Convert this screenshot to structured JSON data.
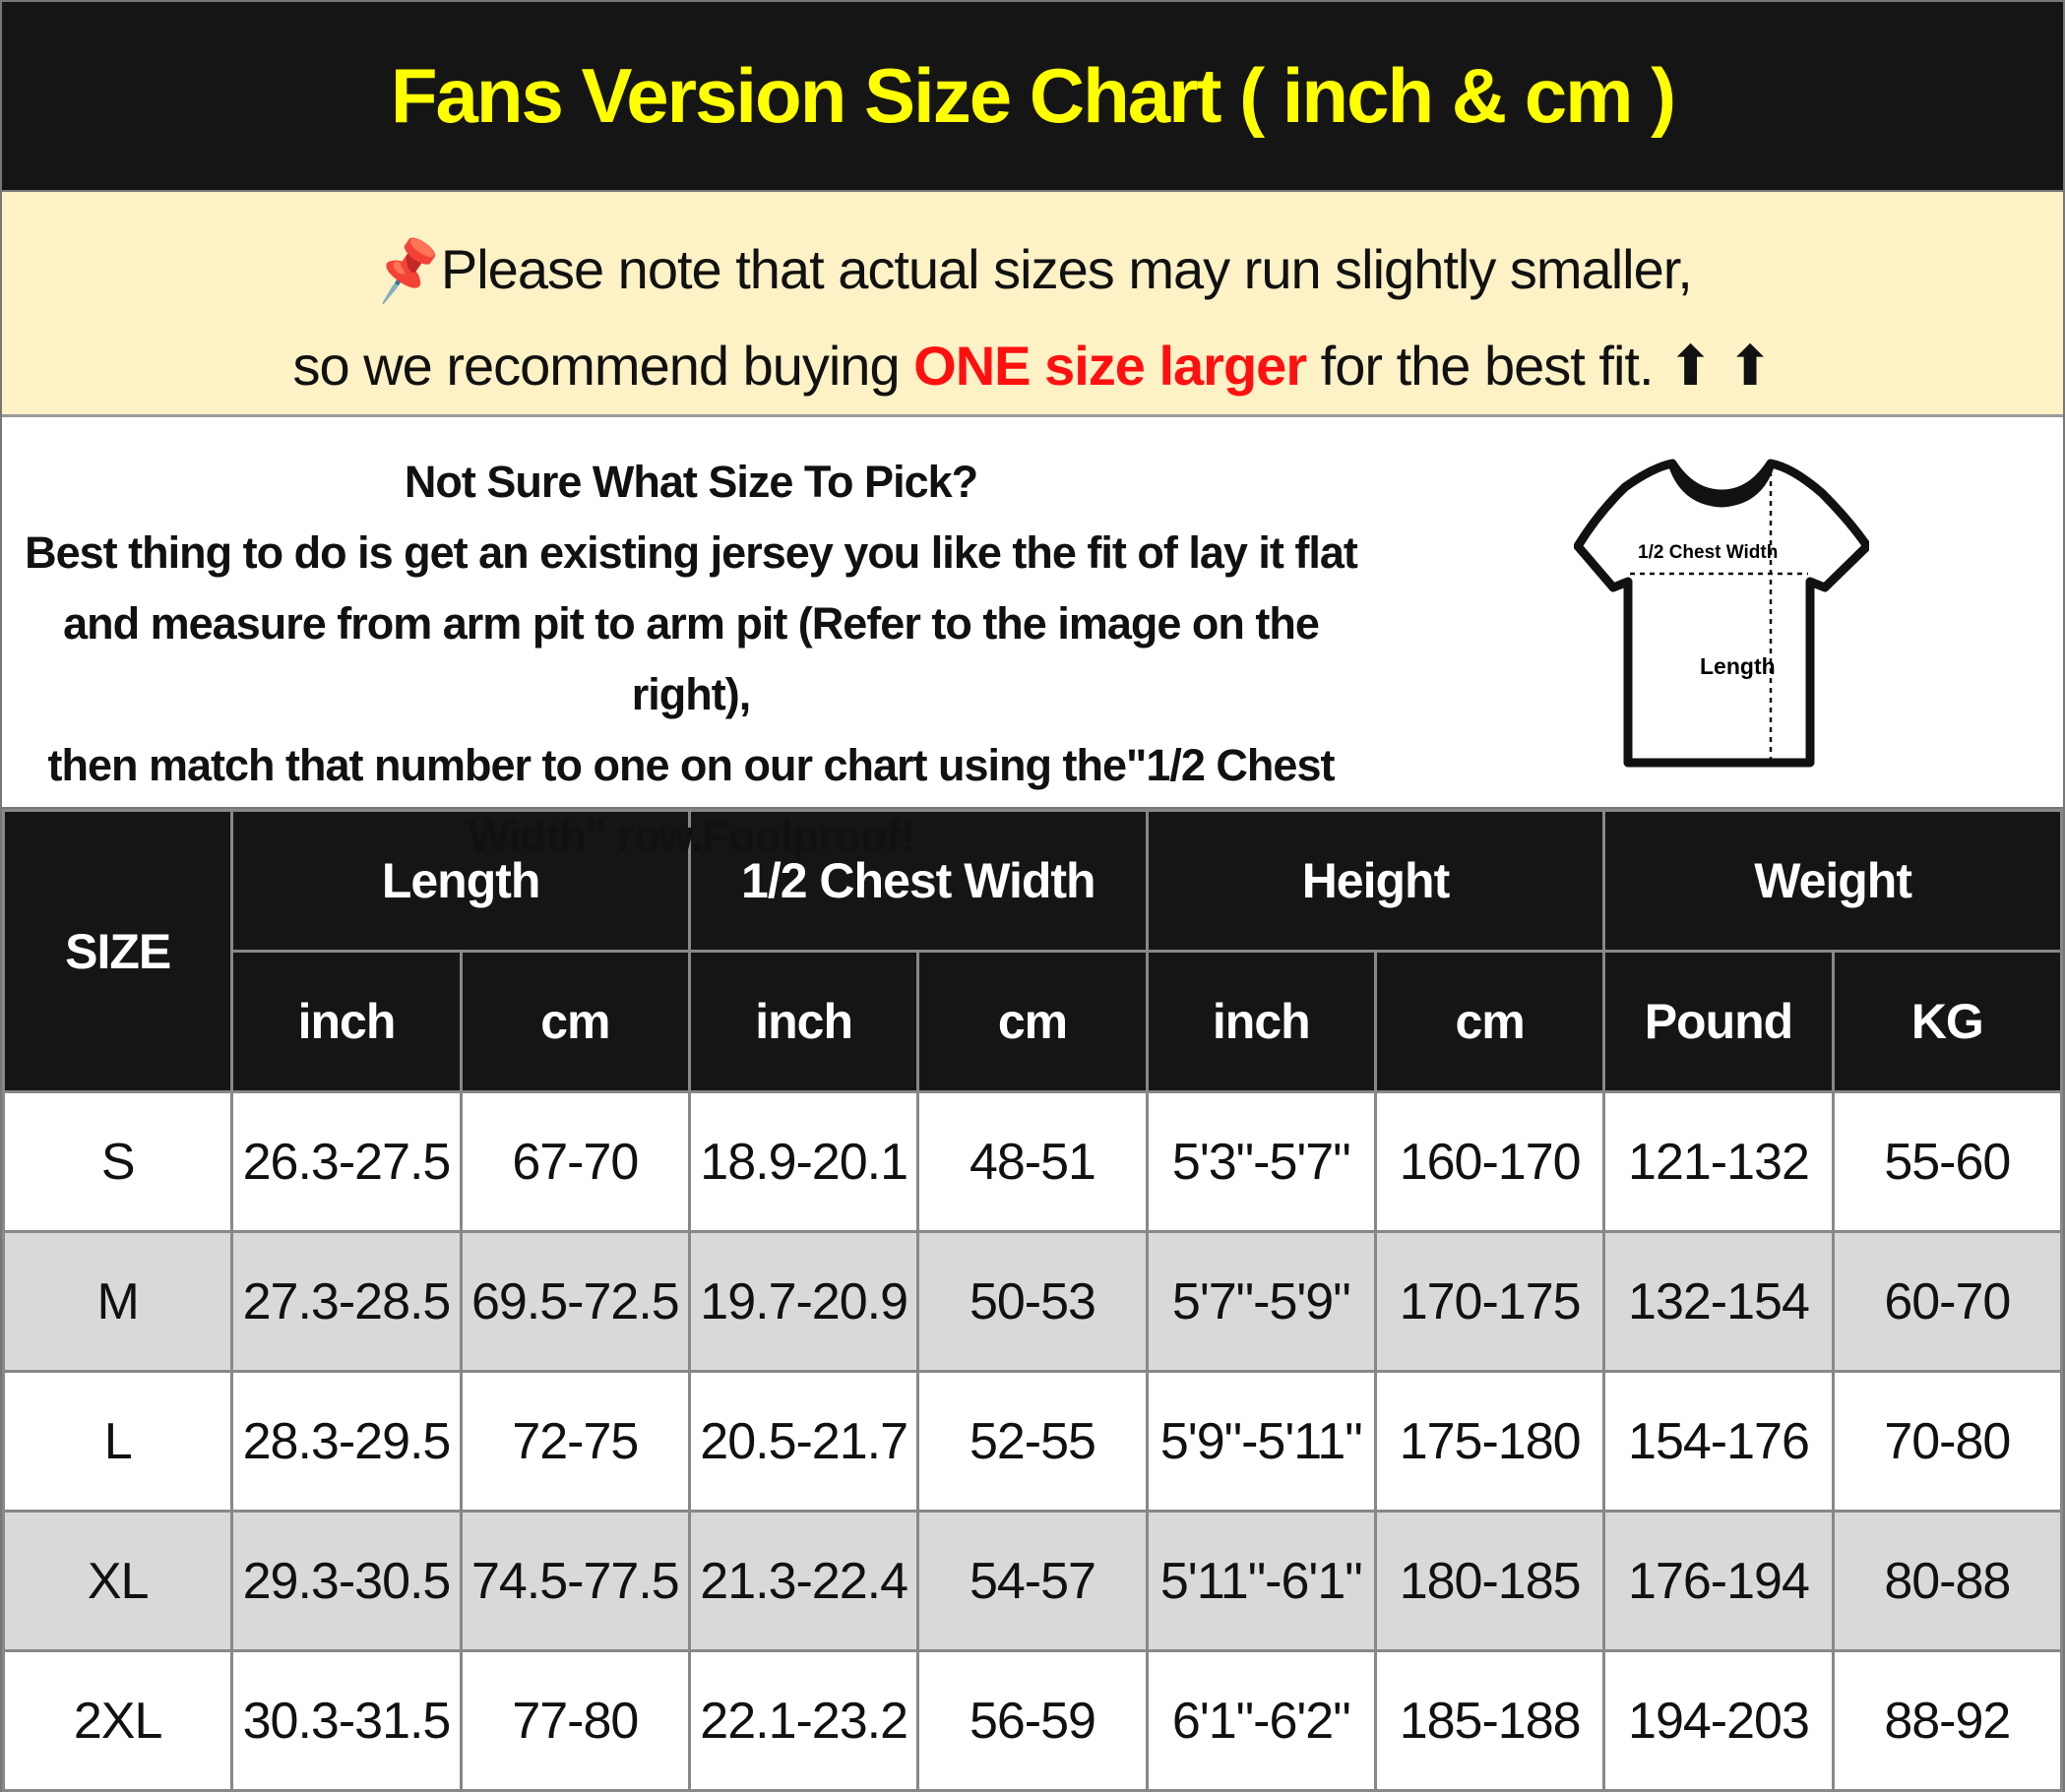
{
  "title": "Fans Version Size Chart ( inch & cm )",
  "note": {
    "pin_icon": "pushpin-icon",
    "line1": "Please note that actual sizes may run slightly smaller,",
    "line2_pre": "so we recommend buying ",
    "line2_red": "ONE size larger",
    "line2_post": " for the best fit. ",
    "arrows": "⬆ ⬆"
  },
  "info": {
    "heading": "Not Sure What Size To Pick?",
    "line1": "Best thing to do is get an existing jersey you like the fit of lay it flat",
    "line2": "and measure from arm pit to arm pit (Refer to the image on the right),",
    "line3": "then match that number to one on our chart using the\"1/2 Chest",
    "line4": "Width\" row.Foolproof!",
    "diagram_chest": "1/2 Chest Width",
    "diagram_length": "Length"
  },
  "table": {
    "size_header": "SIZE",
    "groups": [
      "Length",
      "1/2 Chest Width",
      "Height",
      "Weight"
    ],
    "units": [
      "inch",
      "cm",
      "inch",
      "cm",
      "inch",
      "cm",
      "Pound",
      "KG"
    ],
    "rows": [
      [
        "S",
        "26.3-27.5",
        "67-70",
        "18.9-20.1",
        "48-51",
        "5'3\"-5'7\"",
        "160-170",
        "121-132",
        "55-60"
      ],
      [
        "M",
        "27.3-28.5",
        "69.5-72.5",
        "19.7-20.9",
        "50-53",
        "5'7\"-5'9\"",
        "170-175",
        "132-154",
        "60-70"
      ],
      [
        "L",
        "28.3-29.5",
        "72-75",
        "20.5-21.7",
        "52-55",
        "5'9\"-5'11\"",
        "175-180",
        "154-176",
        "70-80"
      ],
      [
        "XL",
        "29.3-30.5",
        "74.5-77.5",
        "21.3-22.4",
        "54-57",
        "5'11\"-6'1\"",
        "180-185",
        "176-194",
        "80-88"
      ],
      [
        "2XL",
        "30.3-31.5",
        "77-80",
        "22.1-23.2",
        "56-59",
        "6'1\"-6'2\"",
        "185-188",
        "194-203",
        "88-92"
      ]
    ]
  }
}
